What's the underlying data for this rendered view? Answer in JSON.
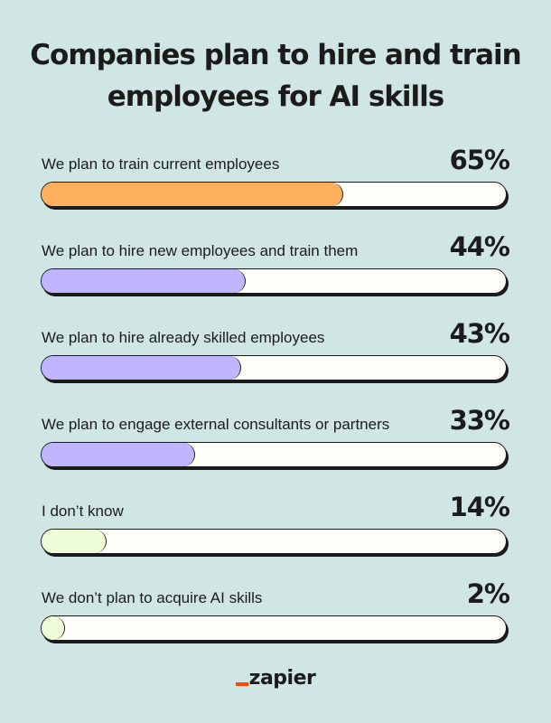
{
  "chart_data": {
    "type": "bar",
    "orientation": "horizontal",
    "title": "Companies plan to hire and train employees for AI skills",
    "categories": [
      "We plan to train current employees",
      "We plan to hire new employees and train them",
      "We plan to hire already skilled employees",
      "We plan to engage external consultants or partners",
      "I don’t know",
      "We don’t plan to acquire AI skills"
    ],
    "values": [
      65,
      44,
      43,
      33,
      14,
      2
    ],
    "value_labels": [
      "65%",
      "44%",
      "43%",
      "33%",
      "14%",
      "2%"
    ],
    "xlim": [
      0,
      100
    ],
    "grid": false,
    "legend": "none"
  },
  "colors": {
    "background": "#cfe6e4",
    "track": "#fffdf7",
    "outline": "#1b1b1b",
    "bar_fills": [
      "#ffb05e",
      "#c0b6ff",
      "#c0b6ff",
      "#c0b6ff",
      "#eefcd8",
      "#eefcd8"
    ],
    "logo_accent": "#ff4a00"
  },
  "brand": {
    "logo_text": "zapier"
  }
}
